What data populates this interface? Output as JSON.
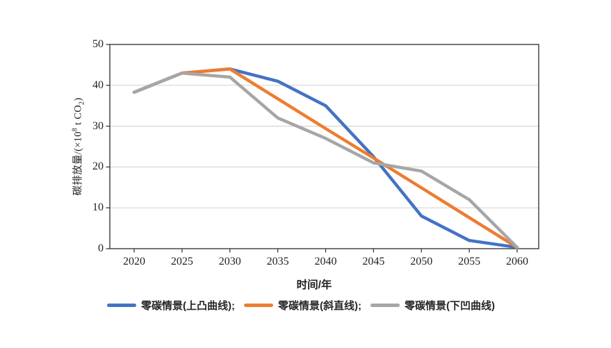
{
  "axes": {
    "x_title": "时间/年",
    "y_title_parts": {
      "pre": "碳排放量/(×10",
      "sup": "8",
      "mid": " t CO",
      "sub": "2",
      "post": ")"
    },
    "x_ticks": [
      2020,
      2025,
      2030,
      2035,
      2040,
      2045,
      2050,
      2055,
      2060
    ],
    "y_ticks": [
      0,
      10,
      20,
      30,
      40,
      50
    ]
  },
  "chart_data": {
    "type": "line",
    "title": "",
    "xlabel": "时间/年",
    "ylabel": "碳排放量/(×10⁸ t CO₂)",
    "x": [
      2020,
      2025,
      2030,
      2035,
      2040,
      2045,
      2050,
      2055,
      2060
    ],
    "xlim": [
      2020,
      2060
    ],
    "ylim": [
      0,
      50
    ],
    "grid": "horizontal",
    "legend_position": "bottom",
    "series": [
      {
        "name": "零碳情景(上凸曲线)",
        "legend_label": "零碳情景(上凸曲线);",
        "color": "#4472C4",
        "values": [
          38.3,
          43,
          44,
          41,
          35,
          22.5,
          8,
          2,
          0.3
        ]
      },
      {
        "name": "零碳情景(斜直线)",
        "legend_label": "零碳情景(斜直线);",
        "color": "#ED7D31",
        "values": [
          38.3,
          43,
          44,
          36.7,
          29.4,
          22.2,
          14.9,
          7.6,
          0.3
        ]
      },
      {
        "name": "零碳情景(下凹曲线)",
        "legend_label": "零碳情景(下凹曲线)",
        "color": "#A6A6A6",
        "values": [
          38.3,
          43,
          42,
          32,
          27,
          21,
          19,
          12,
          0.3
        ]
      }
    ]
  },
  "style": {
    "axis_color": "#3a3a3a",
    "gridline_color": "#d6d6d6",
    "line_width": 4.5
  }
}
